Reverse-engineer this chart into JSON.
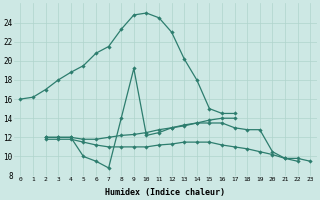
{
  "xlabel": "Humidex (Indice chaleur)",
  "background_color": "#cde8e4",
  "grid_color": "#b0d4cc",
  "line_color": "#2d7d6e",
  "xlim": [
    -0.5,
    23.5
  ],
  "ylim": [
    8,
    26
  ],
  "xtick_labels": [
    "0",
    "1",
    "2",
    "3",
    "4",
    "5",
    "6",
    "7",
    "8",
    "9",
    "10",
    "11",
    "12",
    "13",
    "14",
    "15",
    "16",
    "17",
    "18",
    "19",
    "20",
    "21",
    "22",
    "23"
  ],
  "ytick_values": [
    8,
    10,
    12,
    14,
    16,
    18,
    20,
    22,
    24
  ],
  "series": [
    {
      "x": [
        0,
        1,
        2,
        3,
        4,
        5,
        6,
        7,
        8,
        9,
        10,
        11,
        12,
        13,
        14,
        15,
        16,
        17
      ],
      "y": [
        16,
        16.2,
        17.0,
        18.0,
        18.8,
        19.5,
        20.8,
        21.5,
        23.3,
        24.8,
        25.0,
        24.5,
        23.0,
        20.2,
        18.0,
        15.0,
        14.5,
        14.5
      ]
    },
    {
      "comment": "Spike curve: x=2 y=12, dips x=5 y=10, x=6 y=9.5, x=7 y=8.8, rises x=8 y=14, x=9 y=19.2, then drops back to ~12",
      "x": [
        2,
        3,
        4,
        5,
        6,
        7,
        8,
        9,
        10,
        11,
        12,
        13,
        14,
        15,
        16,
        17
      ],
      "y": [
        12.0,
        12.0,
        12.0,
        10.0,
        9.5,
        8.8,
        14.0,
        19.2,
        12.2,
        12.5,
        13.0,
        13.3,
        13.5,
        13.8,
        14.0,
        14.0
      ]
    },
    {
      "x": [
        2,
        3,
        4,
        5,
        6,
        7,
        8,
        9,
        10,
        11,
        12,
        13,
        14,
        15,
        16,
        17,
        18,
        19,
        20,
        21,
        22
      ],
      "y": [
        12.0,
        12.0,
        12.0,
        11.8,
        11.8,
        12.0,
        12.2,
        12.3,
        12.5,
        12.8,
        13.0,
        13.2,
        13.5,
        13.5,
        13.5,
        13.0,
        12.8,
        12.8,
        10.5,
        9.8,
        9.5
      ]
    },
    {
      "x": [
        2,
        3,
        4,
        5,
        6,
        7,
        8,
        9,
        10,
        11,
        12,
        13,
        14,
        15,
        16,
        17,
        18,
        19,
        20,
        21,
        22,
        23
      ],
      "y": [
        11.8,
        11.8,
        11.8,
        11.5,
        11.2,
        11.0,
        11.0,
        11.0,
        11.0,
        11.2,
        11.3,
        11.5,
        11.5,
        11.5,
        11.2,
        11.0,
        10.8,
        10.5,
        10.2,
        9.8,
        9.8,
        9.5
      ]
    }
  ]
}
